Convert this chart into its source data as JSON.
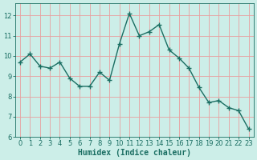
{
  "x": [
    0,
    1,
    2,
    3,
    4,
    5,
    6,
    7,
    8,
    9,
    10,
    11,
    12,
    13,
    14,
    15,
    16,
    17,
    18,
    19,
    20,
    21,
    22,
    23
  ],
  "y": [
    9.7,
    10.1,
    9.5,
    9.4,
    9.7,
    8.9,
    8.5,
    8.5,
    9.2,
    8.8,
    10.6,
    12.1,
    11.0,
    11.2,
    11.55,
    10.3,
    9.9,
    9.4,
    8.45,
    7.7,
    7.8,
    7.45,
    7.3,
    6.4
  ],
  "line_color": "#1a6e62",
  "marker": "+",
  "marker_size": 4,
  "bg_color": "#cceee8",
  "grid_color": "#e8a0a0",
  "xlabel": "Humidex (Indice chaleur)",
  "xlim": [
    -0.5,
    23.5
  ],
  "ylim": [
    6,
    12.6
  ],
  "yticks": [
    6,
    7,
    8,
    9,
    10,
    11,
    12
  ],
  "xticks": [
    0,
    1,
    2,
    3,
    4,
    5,
    6,
    7,
    8,
    9,
    10,
    11,
    12,
    13,
    14,
    15,
    16,
    17,
    18,
    19,
    20,
    21,
    22,
    23
  ],
  "tick_color": "#1a6e62",
  "xlabel_fontsize": 7,
  "tick_fontsize": 6,
  "line_width": 1.0,
  "marker_color": "#1a6e62"
}
